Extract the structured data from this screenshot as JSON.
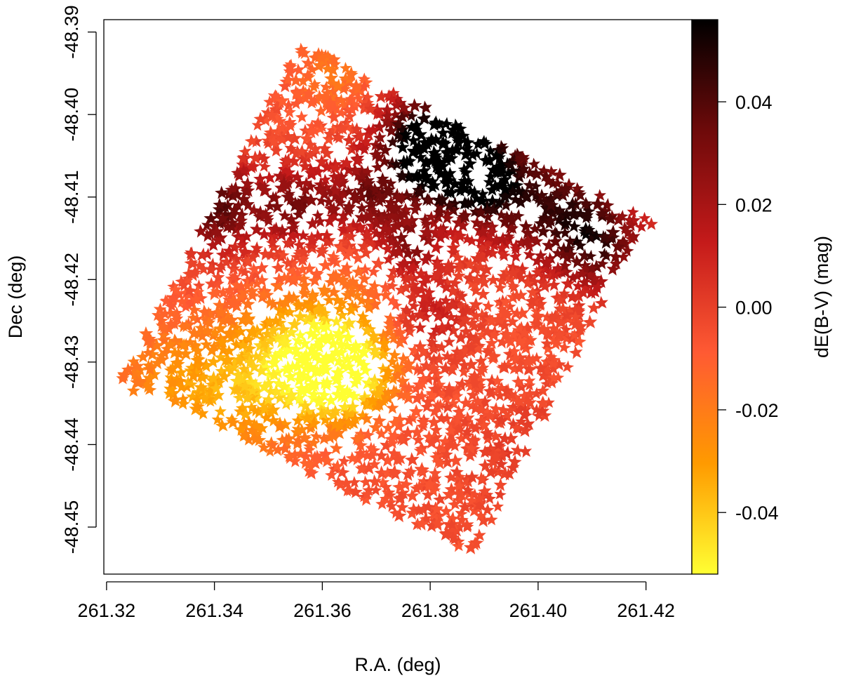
{
  "chart_data": {
    "type": "scatter",
    "marker": "star",
    "title": "",
    "xlabel": "R.A. (deg)",
    "ylabel": "Dec (deg)",
    "xlim": [
      261.3195,
      261.4285
    ],
    "ylim": [
      -48.4557,
      -48.3885
    ],
    "x_ticks": [
      261.32,
      261.34,
      261.36,
      261.38,
      261.4,
      261.42
    ],
    "x_tick_labels": [
      "261.32",
      "261.34",
      "261.36",
      "261.38",
      "261.40",
      "261.42"
    ],
    "y_ticks": [
      -48.39,
      -48.4,
      -48.41,
      -48.42,
      -48.43,
      -48.44,
      -48.45
    ],
    "y_tick_labels": [
      "-48.39",
      "-48.40",
      "-48.41",
      "-48.42",
      "-48.43",
      "-48.44",
      "-48.45"
    ],
    "grid": false,
    "field_corners": [
      [
        261.356,
        -48.3913
      ],
      [
        261.42,
        -48.4126
      ],
      [
        261.388,
        -48.4535
      ],
      [
        261.323,
        -48.4318
      ]
    ],
    "extinction_features": [
      {
        "x": 261.384,
        "y": -48.406,
        "dE": 0.054,
        "radius_deg": 0.006
      },
      {
        "x": 261.378,
        "y": -48.403,
        "dE": 0.046,
        "radius_deg": 0.006
      },
      {
        "x": 261.392,
        "y": -48.408,
        "dE": 0.04,
        "radius_deg": 0.007
      },
      {
        "x": 261.34,
        "y": -48.411,
        "dE": 0.04,
        "radius_deg": 0.006
      },
      {
        "x": 261.405,
        "y": -48.412,
        "dE": 0.033,
        "radius_deg": 0.007
      },
      {
        "x": 261.355,
        "y": -48.411,
        "dE": 0.03,
        "radius_deg": 0.005
      },
      {
        "x": 261.368,
        "y": -48.41,
        "dE": 0.03,
        "radius_deg": 0.005
      },
      {
        "x": 261.376,
        "y": -48.416,
        "dE": 0.028,
        "radius_deg": 0.004
      },
      {
        "x": 261.412,
        "y": -48.416,
        "dE": 0.03,
        "radius_deg": 0.006
      },
      {
        "x": 261.364,
        "y": -48.431,
        "dE": -0.052,
        "radius_deg": 0.006
      },
      {
        "x": 261.358,
        "y": -48.429,
        "dE": -0.04,
        "radius_deg": 0.008
      },
      {
        "x": 261.345,
        "y": -48.433,
        "dE": -0.03,
        "radius_deg": 0.009
      },
      {
        "x": 261.33,
        "y": -48.433,
        "dE": -0.02,
        "radius_deg": 0.008
      },
      {
        "x": 261.362,
        "y": -48.395,
        "dE": -0.018,
        "radius_deg": 0.006
      },
      {
        "x": 261.37,
        "y": -48.419,
        "dE": -0.012,
        "radius_deg": 0.006
      },
      {
        "x": 261.4,
        "y": -48.442,
        "dE": 0.002,
        "radius_deg": 0.008
      },
      {
        "x": 261.38,
        "y": -48.424,
        "dE": 0.012,
        "radius_deg": 0.005
      }
    ],
    "baseline_dE": -0.005,
    "n_stars": 2600,
    "colorbar": {
      "label": "dE(B-V) (mag)",
      "range": [
        -0.052,
        0.056
      ],
      "ticks": [
        0.04,
        0.02,
        0.0,
        -0.02,
        -0.04
      ],
      "tick_labels": [
        "0.04",
        "0.02",
        "0.00",
        "-0.02",
        "-0.04"
      ],
      "colormap": [
        "#ffff33",
        "#ff9a00",
        "#ff5a33",
        "#c41a1a",
        "#6e0a0a",
        "#000000"
      ]
    }
  }
}
